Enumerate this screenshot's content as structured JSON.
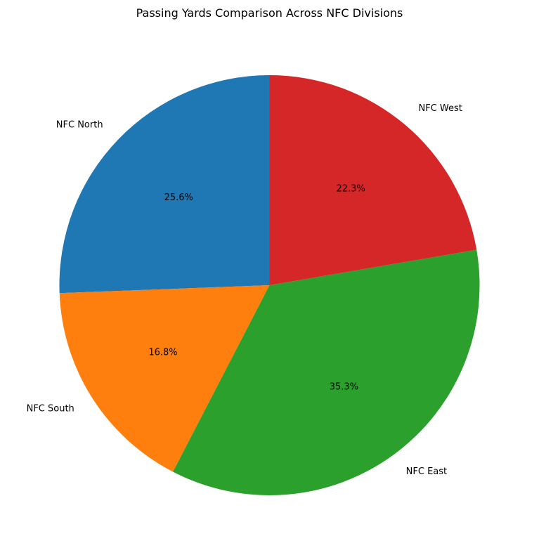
{
  "chart_data": {
    "type": "pie",
    "title": "Passing Yards Comparison Across NFC Divisions",
    "start_angle_deg": 90,
    "direction": "counterclockwise",
    "slices": [
      {
        "label": "NFC North",
        "percent": 25.6,
        "pct_text": "25.6%",
        "color": "#1f77b4"
      },
      {
        "label": "NFC South",
        "percent": 16.8,
        "pct_text": "16.8%",
        "color": "#ff7f0e"
      },
      {
        "label": "NFC East",
        "percent": 35.3,
        "pct_text": "35.3%",
        "color": "#2ca02c"
      },
      {
        "label": "NFC West",
        "percent": 22.3,
        "pct_text": "22.3%",
        "color": "#d62728"
      }
    ]
  }
}
